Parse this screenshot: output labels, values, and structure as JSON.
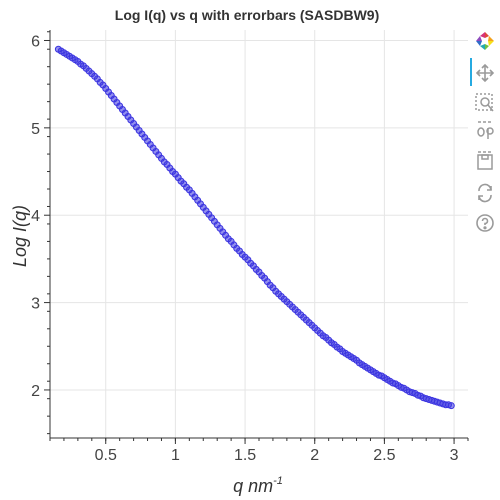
{
  "chart_data": {
    "type": "scatter",
    "title": "Log I(q) vs q with errorbars (SASDBW9)",
    "xlabel": "q nm",
    "xlabel_sup": "-1",
    "ylabel": "Log I(q)",
    "xlim": [
      0.1,
      3.1
    ],
    "ylim": [
      1.45,
      6.12
    ],
    "xticks": [
      0.5,
      1,
      1.5,
      2,
      2.5,
      3
    ],
    "xtick_labels": [
      "0.5",
      "1",
      "1.5",
      "2",
      "2.5",
      "3"
    ],
    "yticks": [
      2,
      3,
      4,
      5,
      6
    ],
    "ytick_labels": [
      "2",
      "3",
      "4",
      "5",
      "6"
    ],
    "grid": true,
    "series": [
      {
        "marker": "circle",
        "color": "#3b34e0",
        "points": [
          [
            0.16,
            5.9
          ],
          [
            0.18,
            5.88
          ],
          [
            0.2,
            5.86
          ],
          [
            0.22,
            5.84
          ],
          [
            0.24,
            5.82
          ],
          [
            0.26,
            5.8
          ],
          [
            0.28,
            5.78
          ],
          [
            0.3,
            5.76
          ],
          [
            0.32,
            5.73
          ],
          [
            0.34,
            5.71
          ],
          [
            0.36,
            5.68
          ],
          [
            0.38,
            5.65
          ],
          [
            0.4,
            5.62
          ],
          [
            0.42,
            5.59
          ],
          [
            0.44,
            5.56
          ],
          [
            0.46,
            5.52
          ],
          [
            0.48,
            5.49
          ],
          [
            0.5,
            5.45
          ],
          [
            0.52,
            5.41
          ],
          [
            0.54,
            5.37
          ],
          [
            0.56,
            5.33
          ],
          [
            0.58,
            5.29
          ],
          [
            0.6,
            5.25
          ],
          [
            0.62,
            5.21
          ],
          [
            0.64,
            5.17
          ],
          [
            0.66,
            5.13
          ],
          [
            0.68,
            5.09
          ],
          [
            0.7,
            5.05
          ],
          [
            0.72,
            5.01
          ],
          [
            0.74,
            4.97
          ],
          [
            0.76,
            4.93
          ],
          [
            0.78,
            4.89
          ],
          [
            0.8,
            4.85
          ],
          [
            0.82,
            4.81
          ],
          [
            0.84,
            4.77
          ],
          [
            0.86,
            4.73
          ],
          [
            0.88,
            4.69
          ],
          [
            0.9,
            4.65
          ],
          [
            0.92,
            4.61
          ],
          [
            0.94,
            4.58
          ],
          [
            0.96,
            4.54
          ],
          [
            0.98,
            4.5
          ],
          [
            1.0,
            4.47
          ],
          [
            1.02,
            4.43
          ],
          [
            1.04,
            4.39
          ],
          [
            1.06,
            4.36
          ],
          [
            1.08,
            4.32
          ],
          [
            1.1,
            4.29
          ],
          [
            1.12,
            4.25
          ],
          [
            1.14,
            4.21
          ],
          [
            1.16,
            4.17
          ],
          [
            1.18,
            4.13
          ],
          [
            1.2,
            4.09
          ],
          [
            1.22,
            4.05
          ],
          [
            1.24,
            4.01
          ],
          [
            1.26,
            3.97
          ],
          [
            1.28,
            3.93
          ],
          [
            1.3,
            3.89
          ],
          [
            1.32,
            3.85
          ],
          [
            1.34,
            3.81
          ],
          [
            1.36,
            3.77
          ],
          [
            1.38,
            3.73
          ],
          [
            1.4,
            3.7
          ],
          [
            1.42,
            3.66
          ],
          [
            1.44,
            3.62
          ],
          [
            1.46,
            3.59
          ],
          [
            1.48,
            3.55
          ],
          [
            1.5,
            3.52
          ],
          [
            1.52,
            3.49
          ],
          [
            1.54,
            3.45
          ],
          [
            1.56,
            3.42
          ],
          [
            1.58,
            3.38
          ],
          [
            1.6,
            3.35
          ],
          [
            1.62,
            3.31
          ],
          [
            1.64,
            3.28
          ],
          [
            1.66,
            3.24
          ],
          [
            1.68,
            3.2
          ],
          [
            1.7,
            3.17
          ],
          [
            1.72,
            3.13
          ],
          [
            1.74,
            3.1
          ],
          [
            1.76,
            3.07
          ],
          [
            1.78,
            3.04
          ],
          [
            1.8,
            3.01
          ],
          [
            1.82,
            2.98
          ],
          [
            1.84,
            2.95
          ],
          [
            1.86,
            2.92
          ],
          [
            1.88,
            2.89
          ],
          [
            1.9,
            2.86
          ],
          [
            1.92,
            2.83
          ],
          [
            1.94,
            2.8
          ],
          [
            1.96,
            2.77
          ],
          [
            1.98,
            2.74
          ],
          [
            2.0,
            2.71
          ],
          [
            2.02,
            2.68
          ],
          [
            2.04,
            2.65
          ],
          [
            2.06,
            2.62
          ],
          [
            2.08,
            2.6
          ],
          [
            2.1,
            2.57
          ],
          [
            2.12,
            2.54
          ],
          [
            2.14,
            2.52
          ],
          [
            2.16,
            2.49
          ],
          [
            2.18,
            2.47
          ],
          [
            2.2,
            2.44
          ],
          [
            2.22,
            2.42
          ],
          [
            2.24,
            2.4
          ],
          [
            2.26,
            2.38
          ],
          [
            2.28,
            2.36
          ],
          [
            2.3,
            2.34
          ],
          [
            2.32,
            2.31
          ],
          [
            2.34,
            2.29
          ],
          [
            2.36,
            2.27
          ],
          [
            2.38,
            2.25
          ],
          [
            2.4,
            2.23
          ],
          [
            2.42,
            2.21
          ],
          [
            2.44,
            2.19
          ],
          [
            2.46,
            2.17
          ],
          [
            2.48,
            2.16
          ],
          [
            2.5,
            2.14
          ],
          [
            2.52,
            2.12
          ],
          [
            2.54,
            2.1
          ],
          [
            2.56,
            2.08
          ],
          [
            2.58,
            2.07
          ],
          [
            2.6,
            2.05
          ],
          [
            2.62,
            2.03
          ],
          [
            2.64,
            2.02
          ],
          [
            2.66,
            2.0
          ],
          [
            2.68,
            1.98
          ],
          [
            2.7,
            1.97
          ],
          [
            2.72,
            1.96
          ],
          [
            2.74,
            1.94
          ],
          [
            2.76,
            1.93
          ],
          [
            2.78,
            1.91
          ],
          [
            2.8,
            1.9
          ],
          [
            2.82,
            1.89
          ],
          [
            2.84,
            1.88
          ],
          [
            2.86,
            1.87
          ],
          [
            2.88,
            1.86
          ],
          [
            2.9,
            1.85
          ],
          [
            2.92,
            1.84
          ],
          [
            2.94,
            1.83
          ],
          [
            2.96,
            1.83
          ],
          [
            2.98,
            1.82
          ]
        ]
      }
    ]
  },
  "toolbar": {
    "logo_icon": "bokeh-logo-icon",
    "tools": [
      "pan-icon",
      "box-zoom-icon",
      "wheel-zoom-icon",
      "save-icon",
      "reset-icon",
      "help-icon"
    ]
  }
}
